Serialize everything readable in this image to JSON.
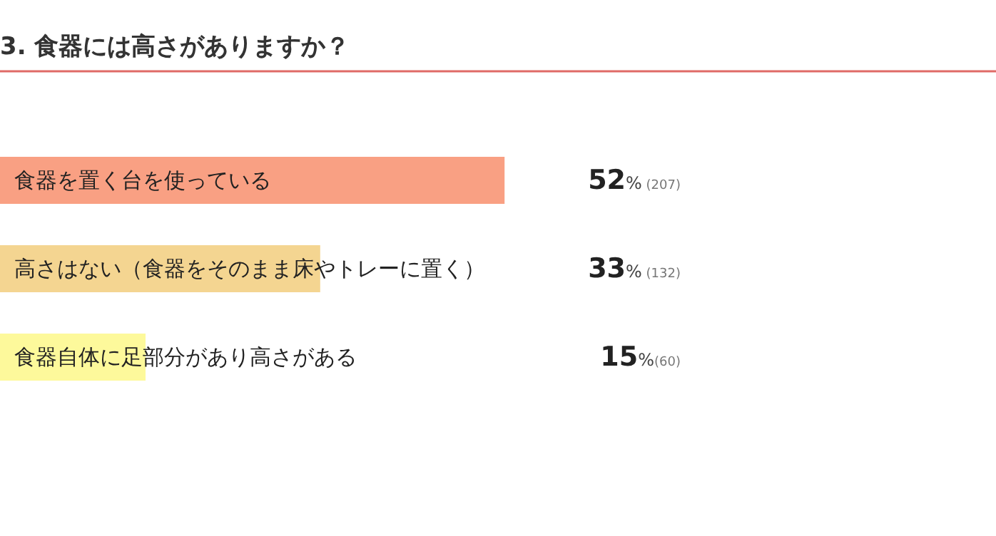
{
  "chart_data": {
    "type": "bar",
    "orientation": "horizontal",
    "title": "3. 食器には高さがありますか？",
    "categories": [
      "食器を置く台を使っている",
      "高さはない（食器をそのまま床やトレーに置く）",
      "食器自体に足部分があり高さがある"
    ],
    "values": [
      52,
      33,
      15
    ],
    "colors": [
      "#f9a083",
      "#f4d591",
      "#fdf99b"
    ],
    "value_labels": [
      "52% (207)",
      "33% (132)",
      "15%(60)"
    ]
  }
}
